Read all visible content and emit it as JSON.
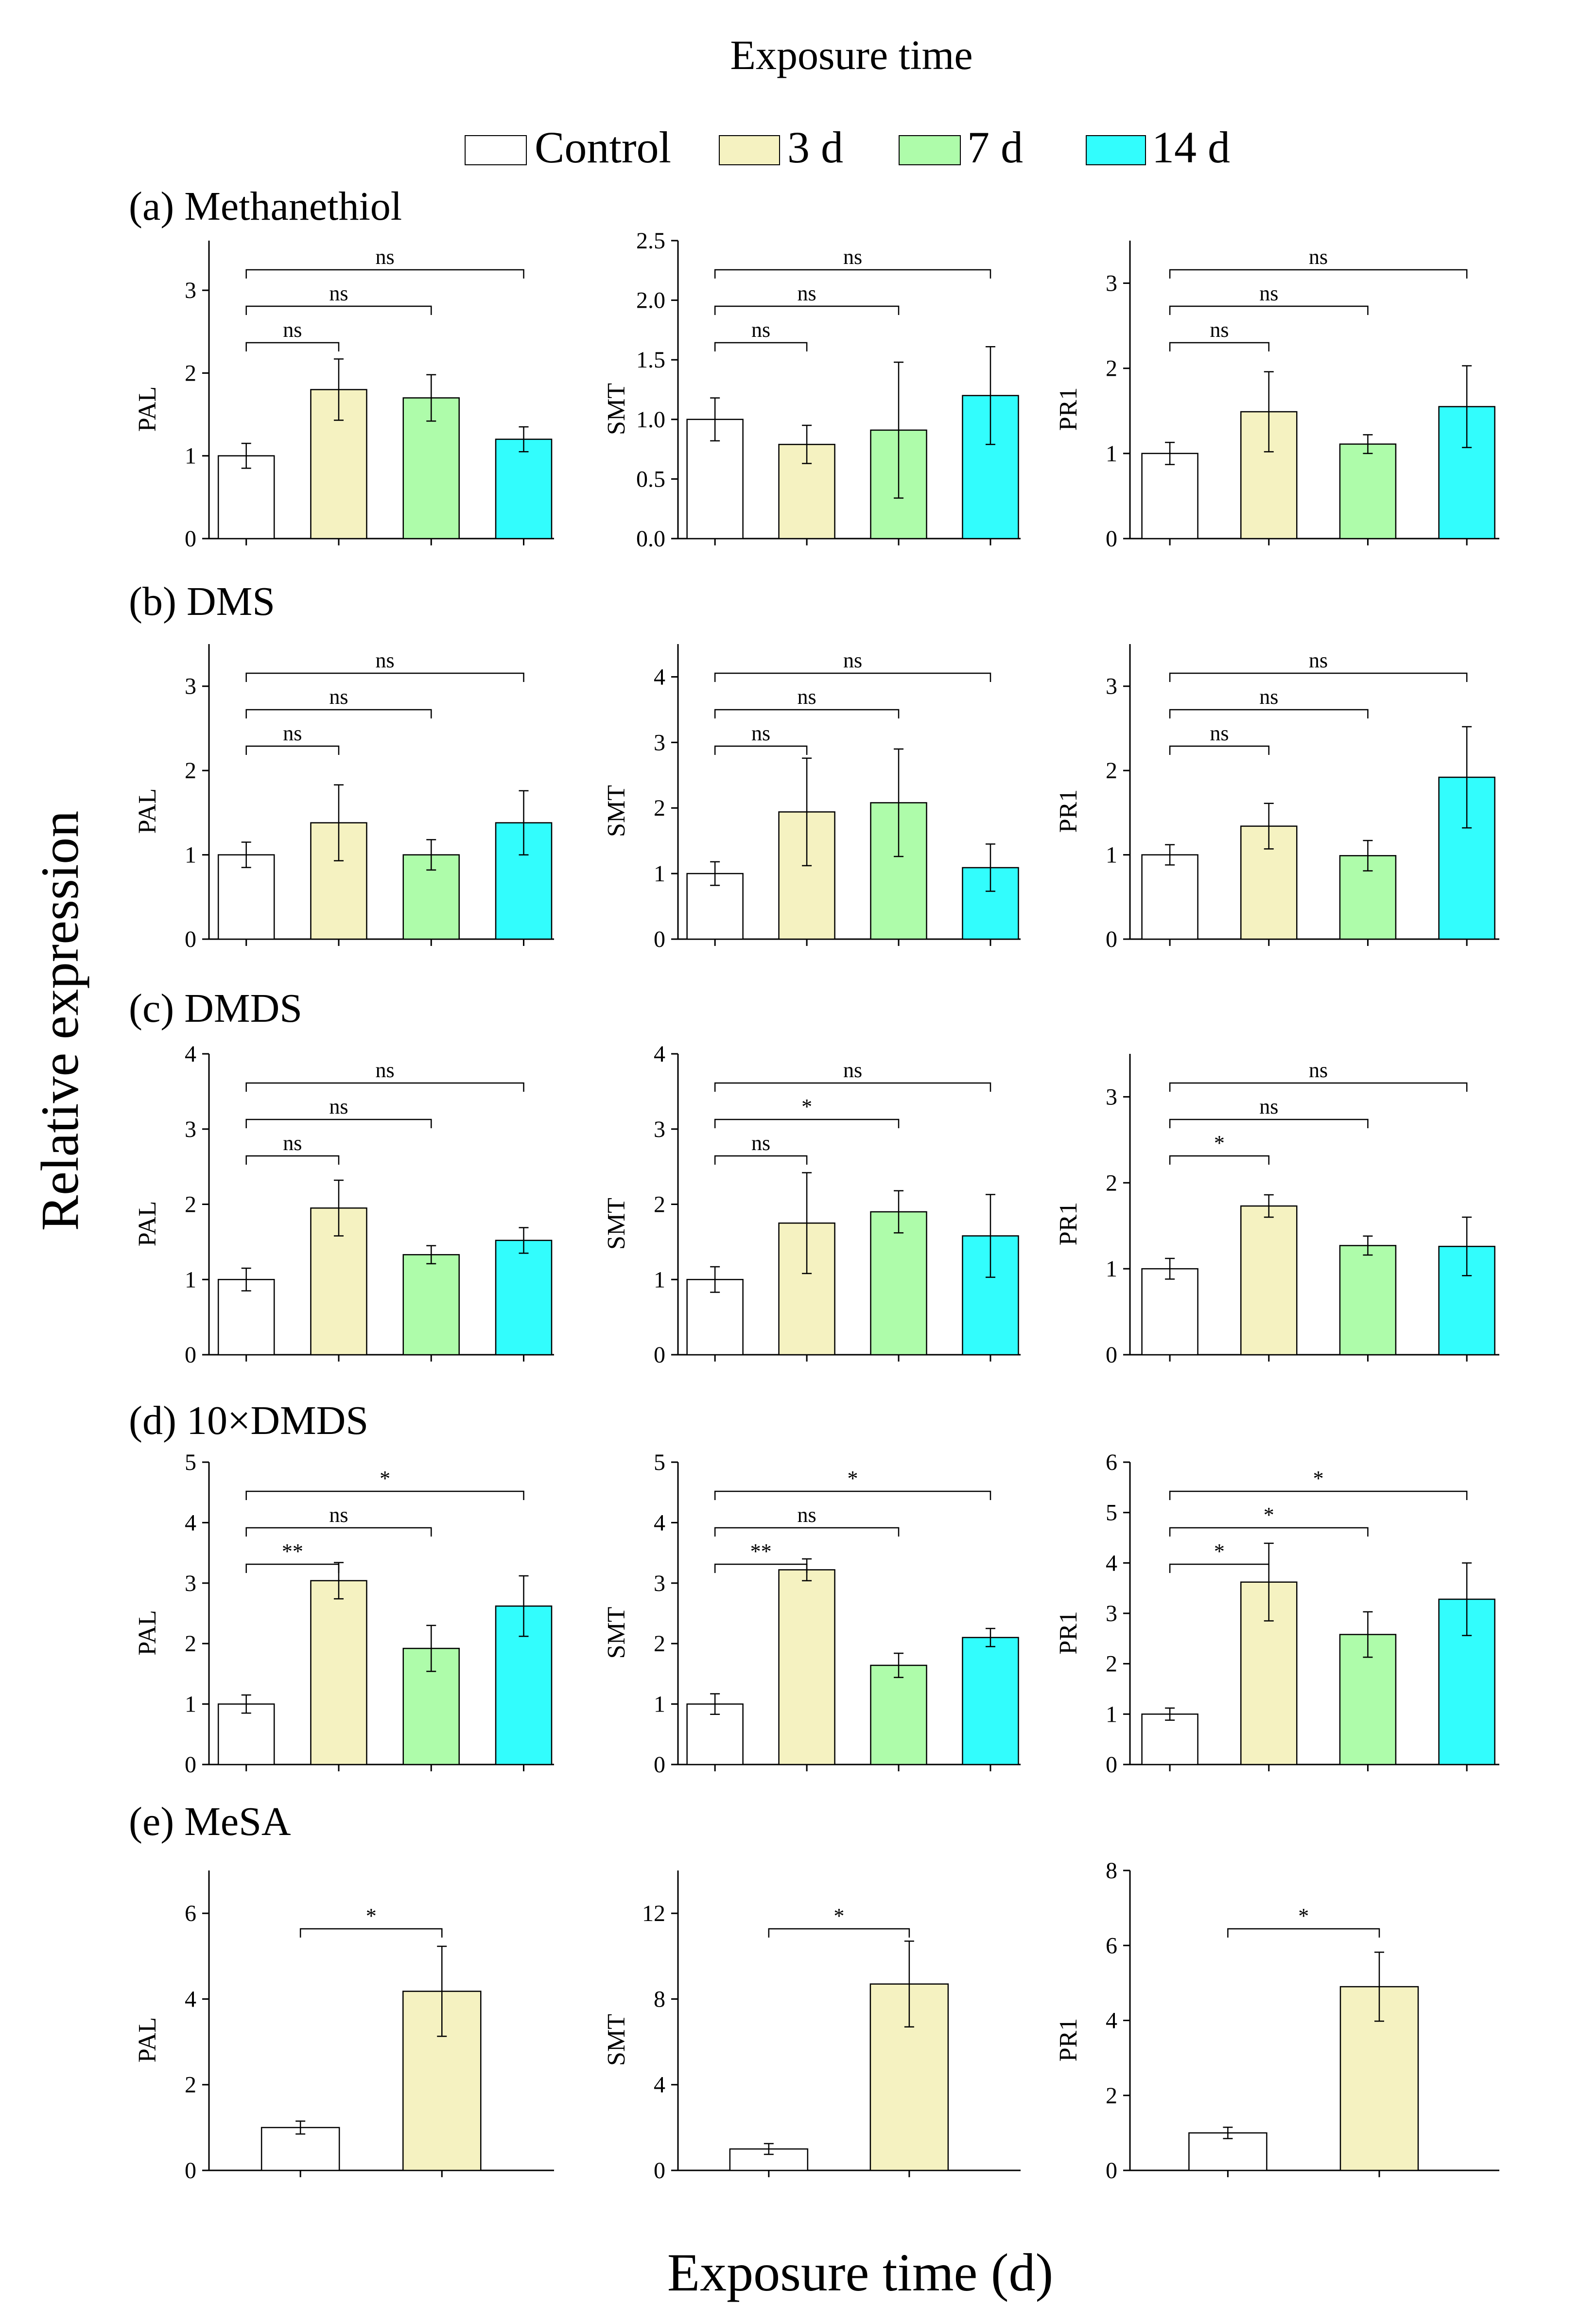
{
  "top_title": "Exposure time",
  "legend": [
    {
      "name": "Control",
      "color": "#ffffff"
    },
    {
      "name": "3 d",
      "color": "#f5f2c1"
    },
    {
      "name": "7 d",
      "color": "#aefcaa"
    },
    {
      "name": "14 d",
      "color": "#32fdfd"
    }
  ],
  "y_label": "Relative expression",
  "x_label": "Exposure time (d)",
  "chart_data": [
    {
      "type": "bar",
      "panel_label": "(a) Methanethiol",
      "ylabel": "PAL",
      "ylim": [
        0,
        3.6
      ],
      "yticks": [
        0,
        1,
        2,
        3
      ],
      "tick_labels": [
        "0",
        "1",
        "2",
        "3"
      ],
      "categories": [
        "Control",
        "3 d",
        "7 d",
        "14 d"
      ],
      "values": [
        1.0,
        1.8,
        1.7,
        1.2
      ],
      "errors": [
        0.15,
        0.37,
        0.28,
        0.15
      ],
      "comparisons": [
        {
          "from": 0,
          "to": 1,
          "label": "ns"
        },
        {
          "from": 0,
          "to": 2,
          "label": "ns"
        },
        {
          "from": 0,
          "to": 3,
          "label": "ns"
        }
      ]
    },
    {
      "type": "bar",
      "panel_label": "",
      "ylabel": "SMT",
      "ylim": [
        0,
        2.5
      ],
      "yticks": [
        0,
        0.5,
        1,
        1.5,
        2,
        2.5
      ],
      "tick_labels": [
        "0.0",
        "0.5",
        "1.0",
        "1.5",
        "2.0",
        "2.5"
      ],
      "categories": [
        "Control",
        "3 d",
        "7 d",
        "14 d"
      ],
      "values": [
        1.0,
        0.79,
        0.91,
        1.2
      ],
      "errors": [
        0.18,
        0.16,
        0.57,
        0.41
      ],
      "comparisons": [
        {
          "from": 0,
          "to": 1,
          "label": "ns"
        },
        {
          "from": 0,
          "to": 2,
          "label": "ns"
        },
        {
          "from": 0,
          "to": 3,
          "label": "ns"
        }
      ]
    },
    {
      "type": "bar",
      "panel_label": "",
      "ylabel": "PR1",
      "ylim": [
        0,
        3.5
      ],
      "yticks": [
        0,
        1,
        2,
        3
      ],
      "tick_labels": [
        "0",
        "1",
        "2",
        "3"
      ],
      "categories": [
        "Control",
        "3 d",
        "7 d",
        "14 d"
      ],
      "values": [
        1.0,
        1.49,
        1.11,
        1.55
      ],
      "errors": [
        0.13,
        0.47,
        0.11,
        0.48
      ],
      "comparisons": [
        {
          "from": 0,
          "to": 1,
          "label": "ns"
        },
        {
          "from": 0,
          "to": 2,
          "label": "ns"
        },
        {
          "from": 0,
          "to": 3,
          "label": "ns"
        }
      ]
    },
    {
      "type": "bar",
      "panel_label": "(b) DMS",
      "ylabel": "PAL",
      "ylim": [
        0,
        3.5
      ],
      "yticks": [
        0,
        1,
        2,
        3
      ],
      "tick_labels": [
        "0",
        "1",
        "2",
        "3"
      ],
      "categories": [
        "Control",
        "3 d",
        "7 d",
        "14 d"
      ],
      "values": [
        1.0,
        1.38,
        1.0,
        1.38
      ],
      "errors": [
        0.15,
        0.45,
        0.18,
        0.38
      ],
      "comparisons": [
        {
          "from": 0,
          "to": 1,
          "label": "ns"
        },
        {
          "from": 0,
          "to": 2,
          "label": "ns"
        },
        {
          "from": 0,
          "to": 3,
          "label": "ns"
        }
      ]
    },
    {
      "type": "bar",
      "panel_label": "",
      "ylabel": "SMT",
      "ylim": [
        0,
        4.5
      ],
      "yticks": [
        0,
        1,
        2,
        3,
        4
      ],
      "tick_labels": [
        "0",
        "1",
        "2",
        "3",
        "4"
      ],
      "categories": [
        "Control",
        "3 d",
        "7 d",
        "14 d"
      ],
      "values": [
        1.0,
        1.94,
        2.08,
        1.09
      ],
      "errors": [
        0.18,
        0.82,
        0.82,
        0.36
      ],
      "comparisons": [
        {
          "from": 0,
          "to": 1,
          "label": "ns"
        },
        {
          "from": 0,
          "to": 2,
          "label": "ns"
        },
        {
          "from": 0,
          "to": 3,
          "label": "ns"
        }
      ]
    },
    {
      "type": "bar",
      "panel_label": "",
      "ylabel": "PR1",
      "ylim": [
        0,
        3.5
      ],
      "yticks": [
        0,
        1,
        2,
        3
      ],
      "tick_labels": [
        "0",
        "1",
        "2",
        "3"
      ],
      "categories": [
        "Control",
        "3 d",
        "7 d",
        "14 d"
      ],
      "values": [
        1.0,
        1.34,
        0.99,
        1.92
      ],
      "errors": [
        0.12,
        0.27,
        0.18,
        0.6
      ],
      "comparisons": [
        {
          "from": 0,
          "to": 1,
          "label": "ns"
        },
        {
          "from": 0,
          "to": 2,
          "label": "ns"
        },
        {
          "from": 0,
          "to": 3,
          "label": "ns"
        }
      ]
    },
    {
      "type": "bar",
      "panel_label": "(c) DMDS",
      "ylabel": "PAL",
      "ylim": [
        0,
        4
      ],
      "yticks": [
        0,
        1,
        2,
        3,
        4
      ],
      "tick_labels": [
        "0",
        "1",
        "2",
        "3",
        "4"
      ],
      "categories": [
        "Control",
        "3 d",
        "7 d",
        "14 d"
      ],
      "values": [
        1.0,
        1.95,
        1.33,
        1.52
      ],
      "errors": [
        0.15,
        0.37,
        0.12,
        0.17
      ],
      "comparisons": [
        {
          "from": 0,
          "to": 1,
          "label": "ns"
        },
        {
          "from": 0,
          "to": 2,
          "label": "ns"
        },
        {
          "from": 0,
          "to": 3,
          "label": "ns"
        }
      ]
    },
    {
      "type": "bar",
      "panel_label": "",
      "ylabel": "SMT",
      "ylim": [
        0,
        4
      ],
      "yticks": [
        0,
        1,
        2,
        3,
        4
      ],
      "tick_labels": [
        "0",
        "1",
        "2",
        "3",
        "4"
      ],
      "categories": [
        "Control",
        "3 d",
        "7 d",
        "14 d"
      ],
      "values": [
        1.0,
        1.75,
        1.9,
        1.58
      ],
      "errors": [
        0.17,
        0.67,
        0.28,
        0.55
      ],
      "comparisons": [
        {
          "from": 0,
          "to": 1,
          "label": "ns"
        },
        {
          "from": 0,
          "to": 2,
          "label": "*"
        },
        {
          "from": 0,
          "to": 3,
          "label": "ns"
        }
      ]
    },
    {
      "type": "bar",
      "panel_label": "",
      "ylabel": "PR1",
      "ylim": [
        0,
        3.5
      ],
      "yticks": [
        0,
        1,
        2,
        3
      ],
      "tick_labels": [
        "0",
        "1",
        "2",
        "3"
      ],
      "categories": [
        "Control",
        "3 d",
        "7 d",
        "14 d"
      ],
      "values": [
        1.0,
        1.73,
        1.27,
        1.26
      ],
      "errors": [
        0.12,
        0.13,
        0.11,
        0.34
      ],
      "comparisons": [
        {
          "from": 0,
          "to": 1,
          "label": "*"
        },
        {
          "from": 0,
          "to": 2,
          "label": "ns"
        },
        {
          "from": 0,
          "to": 3,
          "label": "ns"
        }
      ]
    },
    {
      "type": "bar",
      "panel_label": "(d) 10×DMDS",
      "ylabel": "PAL",
      "ylim": [
        0,
        5
      ],
      "yticks": [
        0,
        1,
        2,
        3,
        4,
        5
      ],
      "tick_labels": [
        "0",
        "1",
        "2",
        "3",
        "4",
        "5"
      ],
      "categories": [
        "Control",
        "3 d",
        "7 d",
        "14 d"
      ],
      "values": [
        1.0,
        3.04,
        1.92,
        2.62
      ],
      "errors": [
        0.15,
        0.3,
        0.38,
        0.5
      ],
      "comparisons": [
        {
          "from": 0,
          "to": 1,
          "label": "**"
        },
        {
          "from": 0,
          "to": 2,
          "label": "ns"
        },
        {
          "from": 0,
          "to": 3,
          "label": "*"
        }
      ]
    },
    {
      "type": "bar",
      "panel_label": "",
      "ylabel": "SMT",
      "ylim": [
        0,
        5
      ],
      "yticks": [
        0,
        1,
        2,
        3,
        4,
        5
      ],
      "tick_labels": [
        "0",
        "1",
        "2",
        "3",
        "4",
        "5"
      ],
      "categories": [
        "Control",
        "3 d",
        "7 d",
        "14 d"
      ],
      "values": [
        1.0,
        3.22,
        1.64,
        2.1
      ],
      "errors": [
        0.17,
        0.18,
        0.2,
        0.15
      ],
      "comparisons": [
        {
          "from": 0,
          "to": 1,
          "label": "**"
        },
        {
          "from": 0,
          "to": 2,
          "label": "ns"
        },
        {
          "from": 0,
          "to": 3,
          "label": "*"
        }
      ]
    },
    {
      "type": "bar",
      "panel_label": "",
      "ylabel": "PR1",
      "ylim": [
        0,
        6
      ],
      "yticks": [
        0,
        1,
        2,
        3,
        4,
        5,
        6
      ],
      "tick_labels": [
        "0",
        "1",
        "2",
        "3",
        "4",
        "5",
        "6"
      ],
      "categories": [
        "Control",
        "3 d",
        "7 d",
        "14 d"
      ],
      "values": [
        1.0,
        3.62,
        2.58,
        3.28
      ],
      "errors": [
        0.12,
        0.77,
        0.45,
        0.72
      ],
      "comparisons": [
        {
          "from": 0,
          "to": 1,
          "label": "*"
        },
        {
          "from": 0,
          "to": 2,
          "label": "*"
        },
        {
          "from": 0,
          "to": 3,
          "label": "*"
        }
      ]
    },
    {
      "type": "bar",
      "panel_label": "(e) MeSA",
      "ylabel": "PAL",
      "ylim": [
        0,
        7
      ],
      "yticks": [
        0,
        2,
        4,
        6
      ],
      "tick_labels": [
        "0",
        "2",
        "4",
        "6"
      ],
      "categories": [
        "Control",
        "3 d"
      ],
      "values": [
        1.0,
        4.18
      ],
      "errors": [
        0.15,
        1.05
      ],
      "comparisons": [
        {
          "from": 0,
          "to": 1,
          "label": "*"
        }
      ]
    },
    {
      "type": "bar",
      "panel_label": "",
      "ylabel": "SMT",
      "ylim": [
        0,
        14
      ],
      "yticks": [
        0,
        4,
        8,
        12
      ],
      "tick_labels": [
        "0",
        "4",
        "8",
        "12"
      ],
      "categories": [
        "Control",
        "3 d"
      ],
      "values": [
        1.0,
        8.7
      ],
      "errors": [
        0.25,
        2.0
      ],
      "comparisons": [
        {
          "from": 0,
          "to": 1,
          "label": "*"
        }
      ]
    },
    {
      "type": "bar",
      "panel_label": "",
      "ylabel": "PR1",
      "ylim": [
        0,
        8
      ],
      "yticks": [
        0,
        2,
        4,
        6,
        8
      ],
      "tick_labels": [
        "0",
        "2",
        "4",
        "6",
        "8"
      ],
      "categories": [
        "Control",
        "3 d"
      ],
      "values": [
        1.0,
        4.9
      ],
      "errors": [
        0.15,
        0.92
      ],
      "comparisons": [
        {
          "from": 0,
          "to": 1,
          "label": "*"
        }
      ]
    }
  ]
}
